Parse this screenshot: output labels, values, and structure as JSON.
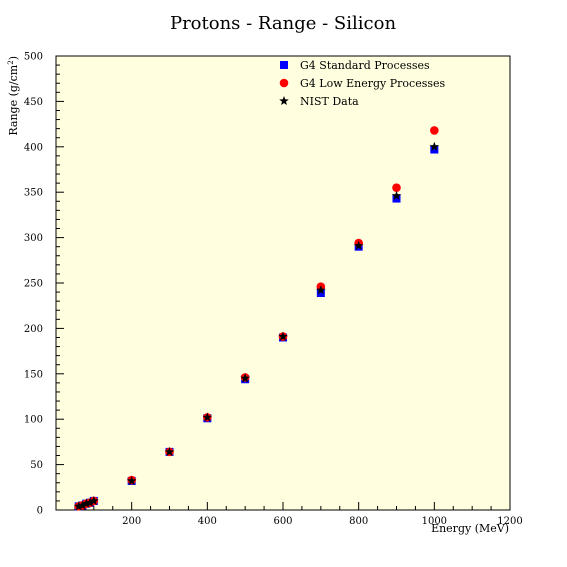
{
  "chart_data": {
    "type": "scatter",
    "title": "Protons - Range - Silicon",
    "xlabel": "Energy (MeV)",
    "ylabel": "Range (g/cm",
    "ylabel_sup": "2",
    "ylabel_close": ")",
    "xlim": [
      0,
      1200
    ],
    "ylim": [
      0,
      500
    ],
    "xticks": [
      200,
      400,
      600,
      800,
      1000,
      1200
    ],
    "yticks": [
      0,
      50,
      100,
      150,
      200,
      250,
      300,
      350,
      400,
      450,
      500
    ],
    "grid": false,
    "legend_position": "top-right",
    "series": [
      {
        "name": "G4 Standard Processes",
        "marker": "square",
        "color": "#0000ff",
        "x": [
          60,
          70,
          80,
          90,
          100,
          200,
          300,
          400,
          500,
          600,
          700,
          800,
          900,
          1000
        ],
        "y": [
          4,
          5,
          7,
          8,
          10,
          32,
          64,
          101,
          144,
          190,
          239,
          290,
          343,
          397
        ]
      },
      {
        "name": "G4 Low Energy Processes",
        "marker": "circle",
        "color": "#ff0000",
        "x": [
          60,
          70,
          80,
          90,
          100,
          200,
          300,
          400,
          500,
          600,
          700,
          800,
          900,
          1000
        ],
        "y": [
          4,
          5,
          7,
          8,
          10,
          33,
          64,
          102,
          146,
          191,
          246,
          294,
          355,
          418
        ]
      },
      {
        "name": "NIST Data",
        "marker": "star",
        "color": "#000000",
        "x": [
          60,
          70,
          80,
          90,
          100,
          200,
          300,
          400,
          500,
          600,
          700,
          800,
          900,
          1000
        ],
        "y": [
          4,
          5,
          7,
          8,
          10,
          32,
          64,
          102,
          145,
          191,
          242,
          291,
          346,
          400
        ]
      }
    ]
  },
  "colors": {
    "plot_background": "#ffffe0",
    "page_background": "#ffffff"
  }
}
